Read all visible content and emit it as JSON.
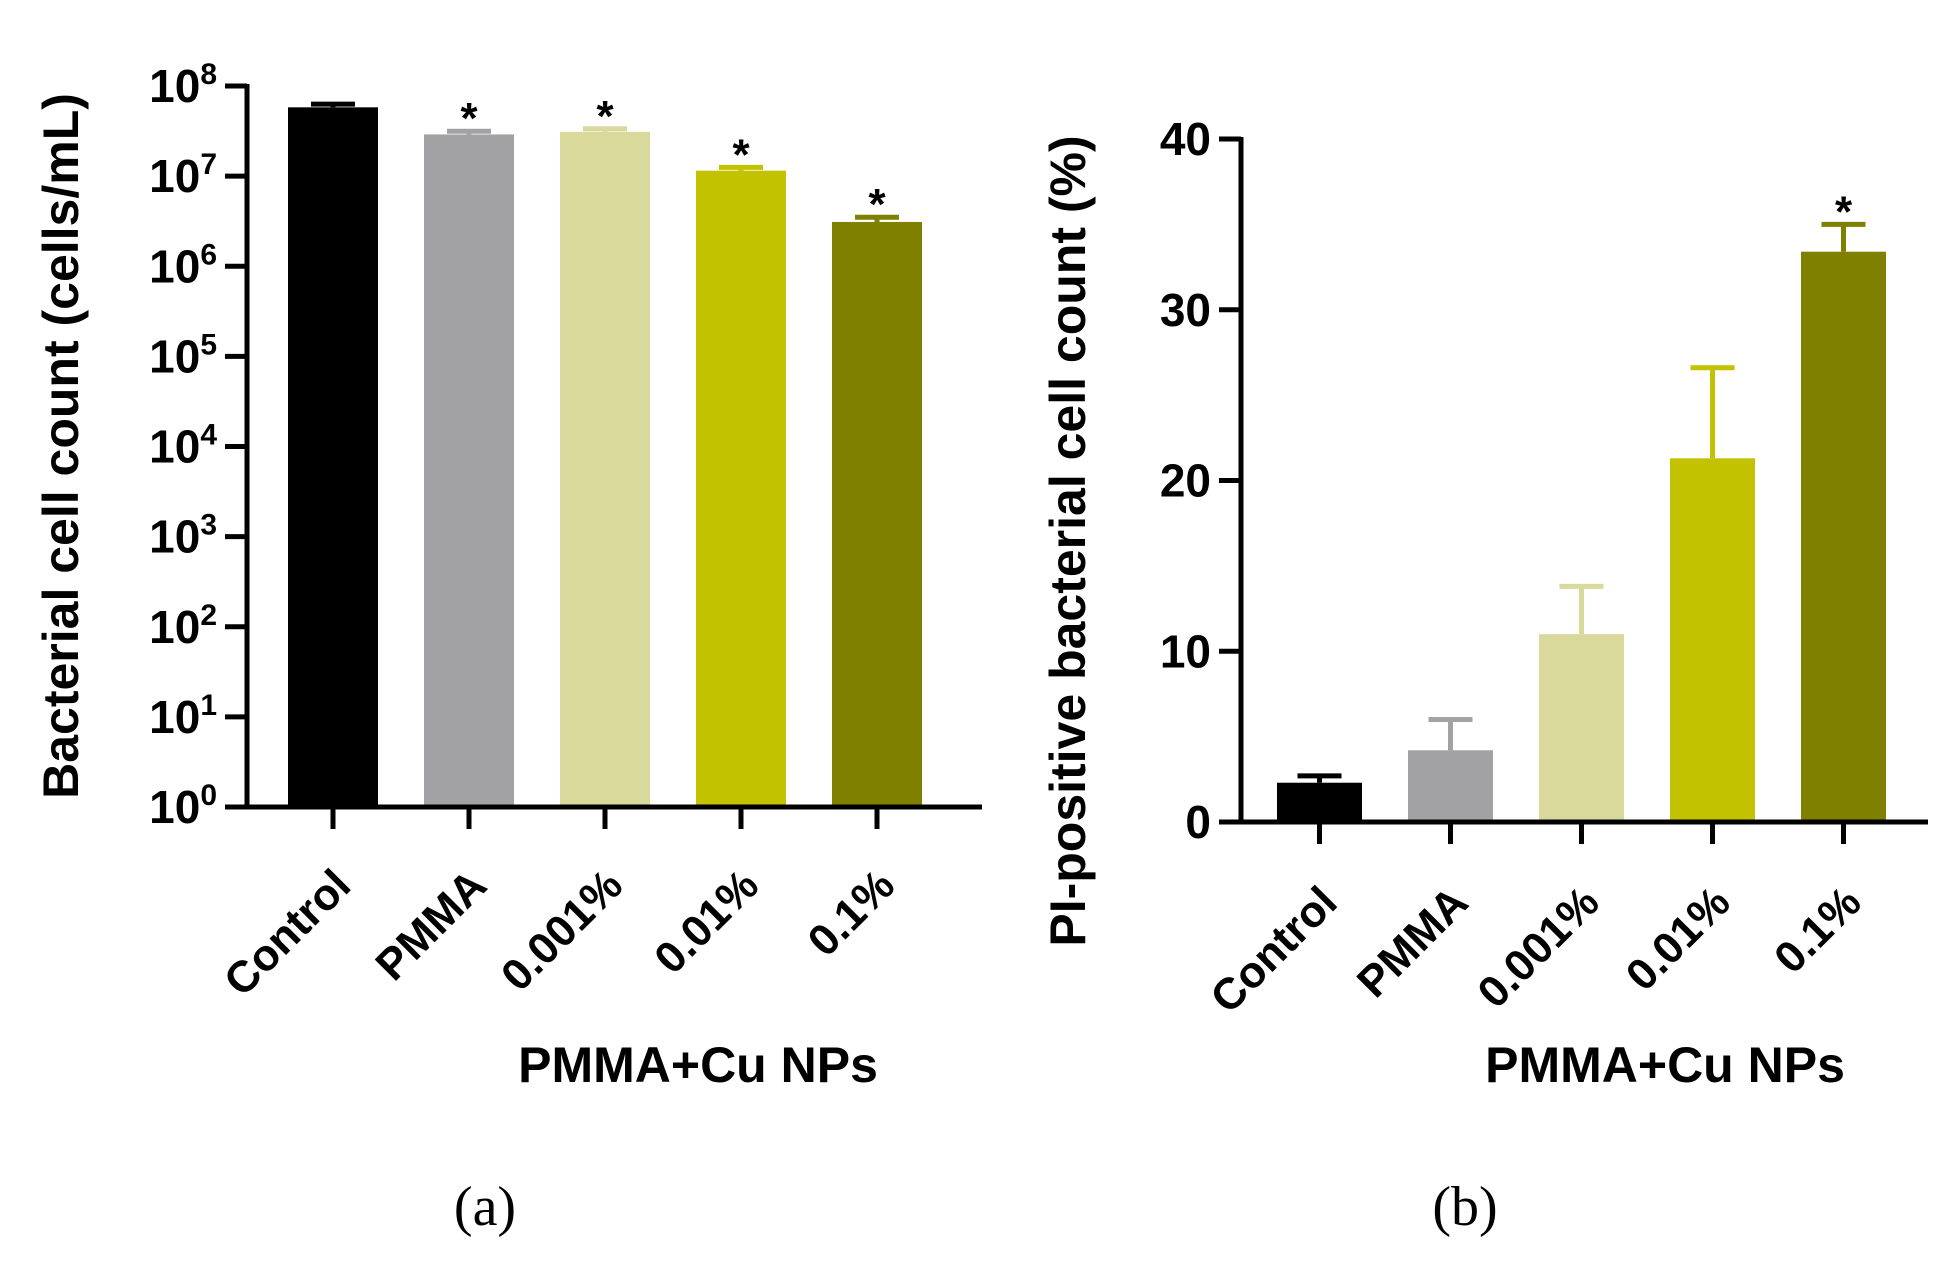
{
  "chart_data": [
    {
      "type": "bar",
      "panel_label": "(a)",
      "scale": "log",
      "categories": [
        "Control",
        "PMMA",
        "0.001%",
        "0.01%",
        "0.1%"
      ],
      "values": [
        58000000,
        29000000,
        31000000,
        11500000,
        3100000
      ],
      "error_upper": [
        63000000,
        31500000,
        33500000,
        12500000,
        3500000
      ],
      "significant": [
        false,
        true,
        true,
        true,
        true
      ],
      "significance_marker": "*",
      "colors": [
        "#000000",
        "#a2a2a5",
        "#d9d99b",
        "#c2c200",
        "#7f7f00"
      ],
      "ylabel": "Bacterial cell count (cells/mL)",
      "xlabel": "PMMA+Cu NPs",
      "ylim": [
        1,
        100000000
      ],
      "yticks": [
        {
          "base": "10",
          "exp": "0",
          "value": 1
        },
        {
          "base": "10",
          "exp": "1",
          "value": 10
        },
        {
          "base": "10",
          "exp": "2",
          "value": 100
        },
        {
          "base": "10",
          "exp": "3",
          "value": 1000
        },
        {
          "base": "10",
          "exp": "4",
          "value": 10000
        },
        {
          "base": "10",
          "exp": "5",
          "value": 100000
        },
        {
          "base": "10",
          "exp": "6",
          "value": 1000000
        },
        {
          "base": "10",
          "exp": "7",
          "value": 10000000
        },
        {
          "base": "10",
          "exp": "8",
          "value": 100000000
        }
      ]
    },
    {
      "type": "bar",
      "panel_label": "(b)",
      "scale": "linear",
      "categories": [
        "Control",
        "PMMA",
        "0.001%",
        "0.01%",
        "0.1%"
      ],
      "values": [
        2.3,
        4.2,
        11.0,
        21.3,
        33.4
      ],
      "error_upper": [
        2.7,
        6.0,
        13.8,
        26.6,
        35.0
      ],
      "significant": [
        false,
        false,
        false,
        false,
        true
      ],
      "significance_marker": "*",
      "colors": [
        "#000000",
        "#a2a2a5",
        "#d9d99b",
        "#c2c200",
        "#7f7f00"
      ],
      "ylabel": "PI-positive bacterial cell count (%)",
      "xlabel": "PMMA+Cu NPs",
      "ylim": [
        0,
        40
      ],
      "yticks": [
        {
          "label": "0",
          "value": 0
        },
        {
          "label": "10",
          "value": 10
        },
        {
          "label": "20",
          "value": 20
        },
        {
          "label": "30",
          "value": 30
        },
        {
          "label": "40",
          "value": 40
        }
      ]
    }
  ]
}
